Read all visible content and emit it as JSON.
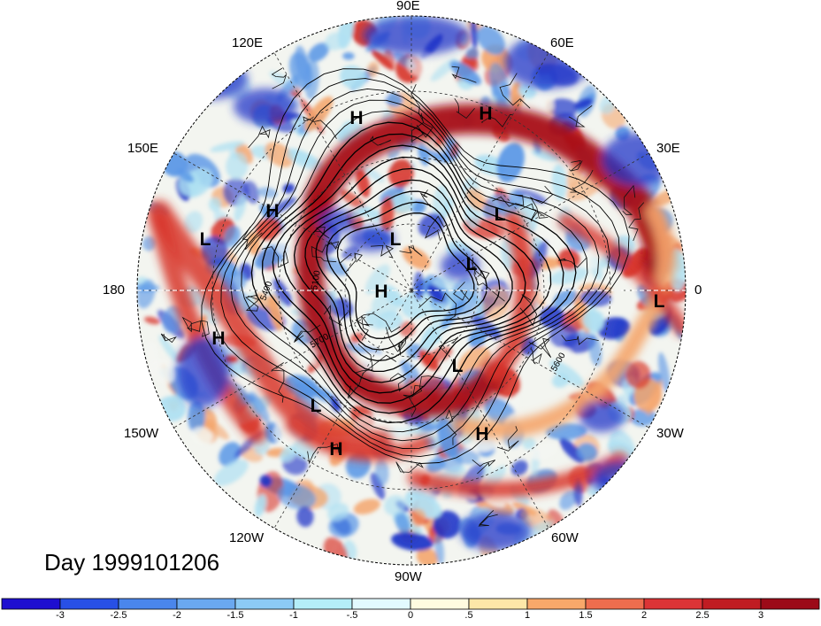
{
  "map": {
    "projection": "north-polar-stereographic",
    "longitude_labels": {
      "top": "90E",
      "upper_left": "120E",
      "upper_right": "60E",
      "left_upper": "150E",
      "right_upper": "30E",
      "left": "180",
      "right": "0",
      "left_lower": "150W",
      "right_lower": "30W",
      "lower_left": "120W",
      "lower_right": "60W",
      "bottom": "90W"
    },
    "pressure_markers": {
      "high": "H",
      "low": "L"
    },
    "contour_labels": [
      "5400",
      "5100",
      "5700",
      "5600"
    ],
    "title": "Day 1999101206"
  },
  "colorbar": {
    "ticks": [
      "-3",
      "-2.5",
      "-2",
      "-1.5",
      "-1",
      "-.5",
      "0",
      ".5",
      "1",
      "1.5",
      "2",
      "2.5",
      "3"
    ],
    "colors": [
      "#1e0fd0",
      "#2850e6",
      "#4a86ec",
      "#6aa8f0",
      "#8ccaf5",
      "#b4eef8",
      "#e2faff",
      "#fffbe0",
      "#fde7a8",
      "#f8a86a",
      "#ee6d4e",
      "#dc3436",
      "#c01c22",
      "#9c0a18"
    ]
  },
  "colors": {
    "strong_warm": "#a80c16",
    "warm": "#d8362c",
    "light_warm": "#f4a56c",
    "neutral": "#f4f6f2",
    "light_cool": "#aee0f2",
    "cool": "#5a97e6",
    "strong_cool": "#1f35c8"
  }
}
